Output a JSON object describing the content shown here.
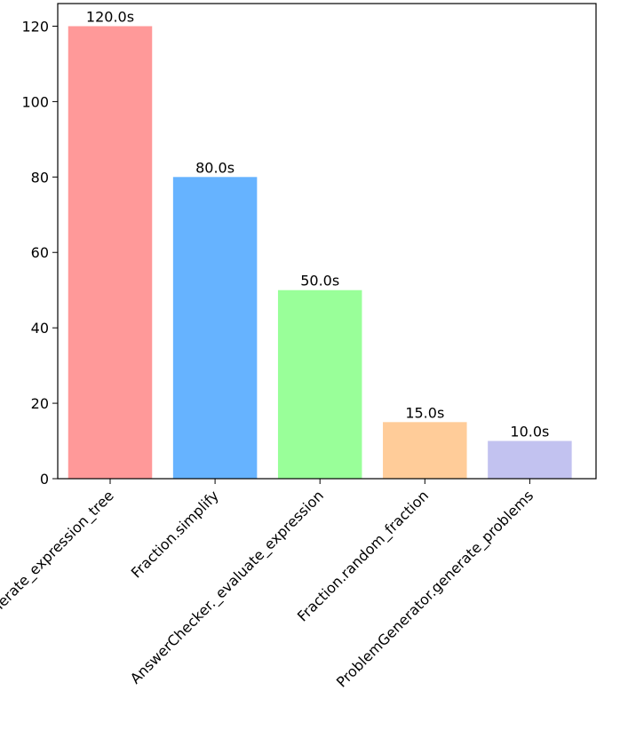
{
  "chart_data": {
    "type": "bar",
    "categories": [
      "Expression._generate_expression_tree",
      "Fraction.simplify",
      "AnswerChecker._evaluate_expression",
      "Fraction.random_fraction",
      "ProblemGenerator.generate_problems"
    ],
    "values": [
      120.0,
      80.0,
      50.0,
      15.0,
      10.0
    ],
    "data_labels": [
      "120.0s",
      "80.0s",
      "50.0s",
      "15.0s",
      "10.0s"
    ],
    "colors": [
      "#ff9999",
      "#66b3ff",
      "#99ff99",
      "#ffcc99",
      "#c2c2f0"
    ],
    "title": "",
    "xlabel": "",
    "ylabel": "",
    "ylim": [
      0,
      126
    ],
    "yticks": [
      0,
      20,
      40,
      60,
      80,
      100,
      120
    ],
    "grid": false,
    "legend": "none"
  }
}
